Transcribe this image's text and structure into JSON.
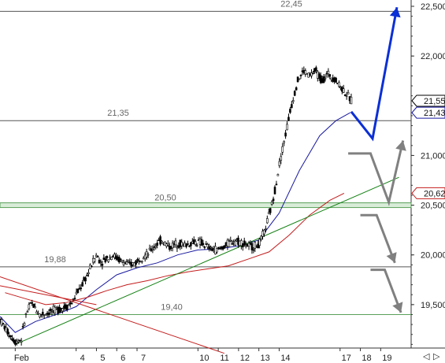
{
  "chart_data": {
    "type": "candlestick",
    "ylim": [
      19000,
      22500
    ],
    "y_ticks": [
      {
        "value": 22500,
        "label": "22,500"
      },
      {
        "value": 22000,
        "label": "22,000"
      },
      {
        "value": 21000,
        "label": "21,000"
      },
      {
        "value": 20500,
        "label": "20,500"
      },
      {
        "value": 20000,
        "label": "20,000"
      },
      {
        "value": 19500,
        "label": "19,500"
      }
    ],
    "x_ticks": [
      {
        "pos": 1.0,
        "label": "Feb"
      },
      {
        "pos": 4.0,
        "label": "4"
      },
      {
        "pos": 5.0,
        "label": "5"
      },
      {
        "pos": 6.0,
        "label": "6"
      },
      {
        "pos": 7.0,
        "label": "7"
      },
      {
        "pos": 10.0,
        "label": "10"
      },
      {
        "pos": 11.0,
        "label": "11"
      },
      {
        "pos": 12.0,
        "label": "12"
      },
      {
        "pos": 13.0,
        "label": "13"
      },
      {
        "pos": 14.0,
        "label": "14"
      },
      {
        "pos": 17.0,
        "label": "17"
      },
      {
        "pos": 18.0,
        "label": "18"
      },
      {
        "pos": 19.0,
        "label": "19"
      }
    ],
    "x_range": [
      0.25,
      20.5
    ],
    "levels": [
      {
        "value": 22450,
        "label": "22,45",
        "color": "#555555",
        "band": false
      },
      {
        "value": 21350,
        "label": "21,35",
        "color": "#555555",
        "band": false
      },
      {
        "value": 20500,
        "label": "20,50",
        "color": "#5aa05a",
        "band": true
      },
      {
        "value": 19880,
        "label": "19,88",
        "color": "#555555",
        "band": false
      },
      {
        "value": 19400,
        "label": "19,40",
        "color": "#5aa05a",
        "band": false
      }
    ],
    "price_knots": [
      [
        0.25,
        19350
      ],
      [
        0.6,
        19230
      ],
      [
        1.0,
        19130
      ],
      [
        1.3,
        19150
      ],
      [
        1.5,
        19380
      ],
      [
        1.8,
        19520
      ],
      [
        2.2,
        19400
      ],
      [
        2.8,
        19430
      ],
      [
        3.2,
        19460
      ],
      [
        3.5,
        19480
      ],
      [
        3.8,
        19520
      ],
      [
        4.0,
        19600
      ],
      [
        4.3,
        19700
      ],
      [
        4.6,
        19820
      ],
      [
        4.8,
        19920
      ],
      [
        5.0,
        20000
      ],
      [
        5.2,
        19930
      ],
      [
        5.5,
        19960
      ],
      [
        5.8,
        20000
      ],
      [
        6.0,
        19970
      ],
      [
        6.3,
        19930
      ],
      [
        6.6,
        19900
      ],
      [
        6.9,
        19920
      ],
      [
        7.2,
        19980
      ],
      [
        7.5,
        20000
      ],
      [
        7.8,
        20080
      ],
      [
        8.2,
        20150
      ],
      [
        8.6,
        20080
      ],
      [
        9.0,
        20120
      ],
      [
        9.4,
        20100
      ],
      [
        9.8,
        20130
      ],
      [
        10.2,
        20120
      ],
      [
        10.6,
        20060
      ],
      [
        11.0,
        20050
      ],
      [
        11.4,
        20100
      ],
      [
        11.8,
        20150
      ],
      [
        12.2,
        20120
      ],
      [
        12.6,
        20080
      ],
      [
        13.0,
        20100
      ],
      [
        13.3,
        20250
      ],
      [
        13.7,
        20550
      ],
      [
        14.0,
        20900
      ],
      [
        14.3,
        21200
      ],
      [
        14.6,
        21500
      ],
      [
        14.9,
        21750
      ],
      [
        15.2,
        21850
      ],
      [
        15.5,
        21800
      ],
      [
        15.8,
        21850
      ],
      [
        16.1,
        21750
      ],
      [
        16.4,
        21820
      ],
      [
        16.7,
        21780
      ],
      [
        17.0,
        21700
      ],
      [
        17.3,
        21620
      ],
      [
        17.55,
        21550
      ]
    ],
    "series": [
      {
        "name": "",
        "color": "#1a1aa0",
        "points": [
          [
            0.25,
            19380
          ],
          [
            1.0,
            19220
          ],
          [
            2.0,
            19330
          ],
          [
            3.0,
            19400
          ],
          [
            4.0,
            19480
          ],
          [
            5.0,
            19650
          ],
          [
            6.0,
            19800
          ],
          [
            7.0,
            19870
          ],
          [
            8.0,
            19920
          ],
          [
            9.0,
            20000
          ],
          [
            10.0,
            20050
          ],
          [
            11.0,
            20060
          ],
          [
            12.0,
            20090
          ],
          [
            13.0,
            20150
          ],
          [
            14.0,
            20420
          ],
          [
            15.0,
            20850
          ],
          [
            16.0,
            21200
          ],
          [
            16.8,
            21350
          ],
          [
            17.5,
            21430
          ]
        ]
      },
      {
        "name": "",
        "color": "#c41c1c",
        "points": [
          [
            0.5,
            19620
          ],
          [
            1.5,
            19560
          ],
          [
            2.5,
            19500
          ],
          [
            3.5,
            19520
          ],
          [
            4.5,
            19570
          ],
          [
            5.5,
            19640
          ],
          [
            6.5,
            19700
          ],
          [
            7.5,
            19740
          ],
          [
            8.5,
            19790
          ],
          [
            9.5,
            19830
          ],
          [
            10.5,
            19860
          ],
          [
            11.5,
            19890
          ],
          [
            12.5,
            19960
          ],
          [
            13.5,
            20030
          ],
          [
            14.5,
            20200
          ],
          [
            15.5,
            20400
          ],
          [
            16.5,
            20550
          ],
          [
            17.2,
            20620
          ]
        ]
      },
      {
        "name": "",
        "color": "#128012",
        "points": [
          [
            1.0,
            19100
          ],
          [
            19.9,
            20780
          ]
        ]
      },
      {
        "name": "",
        "color": "#c41c1c",
        "points": [
          [
            0.25,
            19780
          ],
          [
            11.3,
            19010
          ]
        ]
      },
      {
        "name": "",
        "color": "#c41c1c",
        "points": [
          [
            0.25,
            19690
          ],
          [
            5.0,
            19500
          ]
        ]
      }
    ],
    "badges": [
      {
        "value": 21550,
        "label": "21,55",
        "color": "#000000"
      },
      {
        "value": 21430,
        "label": "21,43",
        "color": "#1a1aa0"
      },
      {
        "value": 20620,
        "label": "20,62",
        "color": "#c41c1c"
      }
    ],
    "scenarios": [
      {
        "color": "#0b2fd6",
        "width": 3,
        "points": [
          [
            17.55,
            21440
          ],
          [
            18.6,
            21170
          ],
          [
            19.8,
            22490
          ]
        ]
      },
      {
        "color": "#808080",
        "width": 3,
        "points": [
          [
            17.4,
            21020
          ],
          [
            18.5,
            21020
          ],
          [
            19.4,
            20530
          ],
          [
            20.1,
            21150
          ]
        ]
      },
      {
        "color": "#808080",
        "width": 3,
        "points": [
          [
            18.0,
            20400
          ],
          [
            18.8,
            20400
          ],
          [
            19.7,
            19920
          ]
        ]
      },
      {
        "color": "#808080",
        "width": 3,
        "points": [
          [
            18.5,
            19850
          ],
          [
            19.2,
            19850
          ],
          [
            20.0,
            19420
          ]
        ]
      }
    ]
  }
}
